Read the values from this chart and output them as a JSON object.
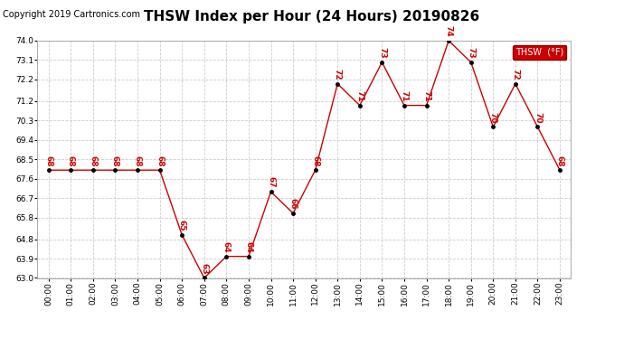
{
  "title": "THSW Index per Hour (24 Hours) 20190826",
  "copyright": "Copyright 2019 Cartronics.com",
  "legend_label": "THSW  (°F)",
  "hours": [
    0,
    1,
    2,
    3,
    4,
    5,
    6,
    7,
    8,
    9,
    10,
    11,
    12,
    13,
    14,
    15,
    16,
    17,
    18,
    19,
    20,
    21,
    22,
    23
  ],
  "values": [
    68,
    68,
    68,
    68,
    68,
    68,
    65,
    63,
    64,
    64,
    67,
    66,
    68,
    72,
    71,
    73,
    71,
    71,
    74,
    73,
    70,
    72,
    70,
    68
  ],
  "ylim_min": 63.0,
  "ylim_max": 74.0,
  "yticks": [
    63.0,
    63.9,
    64.8,
    65.8,
    66.7,
    67.6,
    68.5,
    69.4,
    70.3,
    71.2,
    72.2,
    73.1,
    74.0
  ],
  "line_color": "#cc0000",
  "marker_color": "#000000",
  "label_color": "#cc0000",
  "legend_bg": "#cc0000",
  "legend_text_color": "#ffffff",
  "title_fontsize": 11,
  "copyright_fontsize": 7,
  "label_fontsize": 6.5,
  "tick_fontsize": 6.5,
  "background_color": "#ffffff",
  "grid_color": "#cccccc"
}
